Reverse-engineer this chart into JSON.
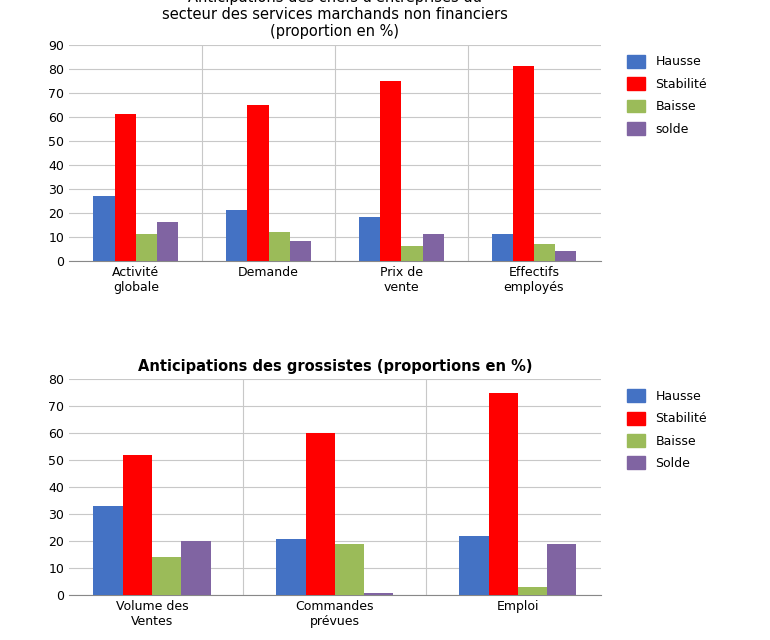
{
  "chart1": {
    "title": "Anticipations des chefs d'entreprises du\nsecteur des services marchands non financiers\n(proportion en %)",
    "categories": [
      "Activité\nglobale",
      "Demande",
      "Prix de\nvente",
      "Effectifs\nemployés"
    ],
    "hausse": [
      27,
      21,
      18,
      11
    ],
    "stabilite": [
      61,
      65,
      75,
      81
    ],
    "baisse": [
      11,
      12,
      6,
      7
    ],
    "solde": [
      16,
      8,
      11,
      4
    ],
    "ylim": [
      0,
      90
    ],
    "yticks": [
      0,
      10,
      20,
      30,
      40,
      50,
      60,
      70,
      80,
      90
    ],
    "legend_labels": [
      "Hausse",
      "Stabilité",
      "Baisse",
      "solde"
    ]
  },
  "chart2": {
    "title": "Anticipations des grossistes (proportions en %)",
    "categories": [
      "Volume des\nVentes",
      "Commandes\nprévues",
      "Emploi"
    ],
    "hausse": [
      33,
      21,
      22
    ],
    "stabilite": [
      52,
      60,
      75
    ],
    "baisse": [
      14,
      19,
      3
    ],
    "solde": [
      20,
      1,
      19
    ],
    "ylim": [
      0,
      80
    ],
    "yticks": [
      0,
      10,
      20,
      30,
      40,
      50,
      60,
      70,
      80
    ],
    "legend_labels": [
      "Hausse",
      "Stabilité",
      "Baisse",
      "Solde"
    ]
  },
  "colors": {
    "hausse": "#4472C4",
    "stabilite": "#FF0000",
    "baisse": "#9BBB59",
    "solde": "#8064A2"
  },
  "bar_width": 0.16,
  "background_color": "#FFFFFF",
  "grid_color": "#C8C8C8"
}
